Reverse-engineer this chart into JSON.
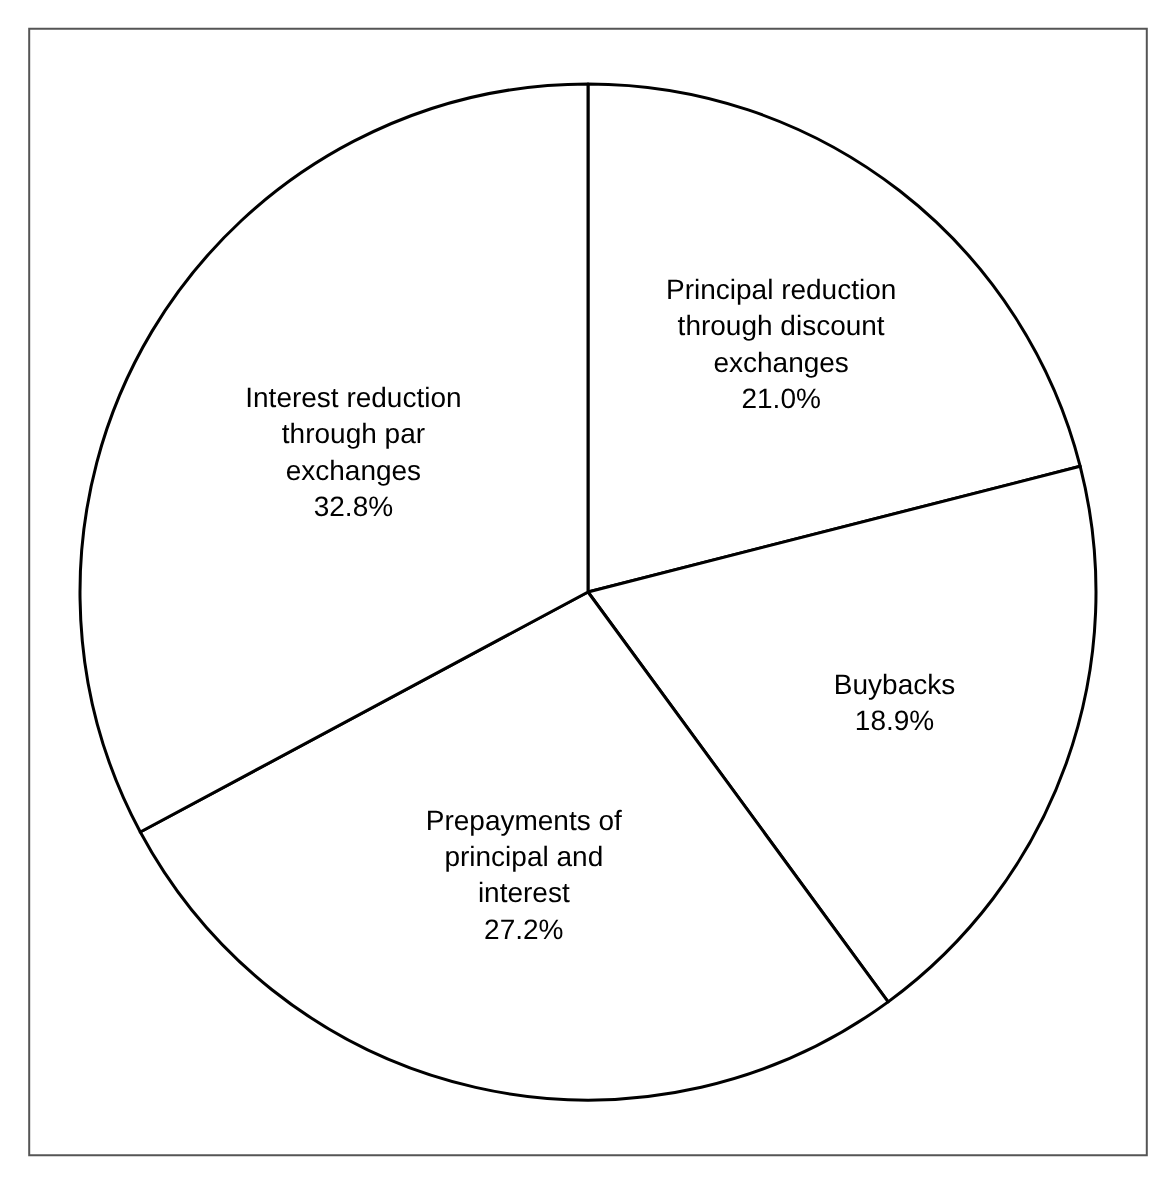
{
  "chart_data": {
    "type": "pie",
    "categories": [
      "Principal reduction\nthrough discount\nexchanges",
      "Buybacks",
      "Prepayments of\nprincipal and\ninterest",
      "Interest reduction\nthrough par\nexchanges"
    ],
    "values": [
      21.0,
      18.9,
      27.2,
      32.8
    ],
    "value_labels": [
      "21.0%",
      "18.9%",
      "27.2%",
      "32.8%"
    ],
    "colors": [
      "#ffffff",
      "#ffffff",
      "#ffffff",
      "#ffffff"
    ],
    "legend": false
  }
}
